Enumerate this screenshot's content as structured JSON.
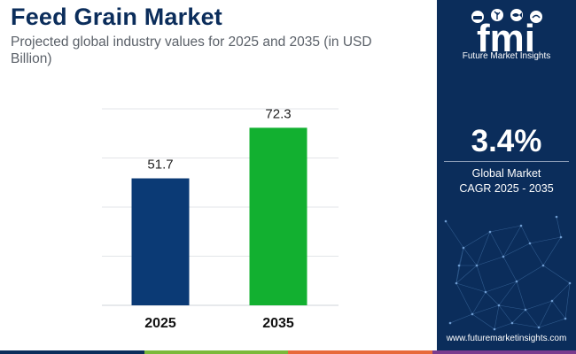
{
  "header": {
    "title": "Feed Grain Market",
    "subtitle": "Projected global industry values for 2025 and 2035 (in USD Billion)"
  },
  "chart_data": {
    "type": "bar",
    "categories": [
      "2025",
      "2035"
    ],
    "values": [
      51.7,
      72.3
    ],
    "value_labels": [
      "51.7",
      "72.3"
    ],
    "bar_colors": [
      "#0b3a75",
      "#12b030"
    ],
    "title": "Feed Grain Market",
    "subtitle": "Projected global industry values for 2025 and 2035 (in USD Billion)",
    "xlabel": "",
    "ylabel": "",
    "ylim": [
      0,
      80
    ],
    "grid": true,
    "legend": "none"
  },
  "sidebar": {
    "brand": "fmi",
    "brand_caption": "Future Market Insights",
    "cagr_value": "3.4%",
    "cagr_label_line1": "Global Market",
    "cagr_label_line2": "CAGR 2025 - 2035",
    "website": "www.futuremarketinsights.com",
    "background": "#0b2d5b",
    "icons": [
      "cow-icon",
      "plant-icon",
      "fish-icon",
      "bird-icon"
    ]
  },
  "footer": {
    "stripe_colors": [
      "#0b2d5b",
      "#7bb93a",
      "#e8693a",
      "#7a3b8e"
    ]
  }
}
